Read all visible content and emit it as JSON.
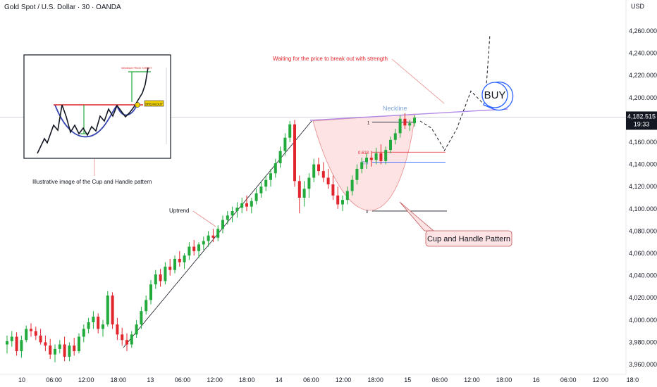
{
  "header": {
    "title": "Gold Spot / U.S. Dollar · 30 · OANDA"
  },
  "price_axis": {
    "currency": "USD",
    "current_price": "4,182.515",
    "countdown": "19:33",
    "ticks": [
      "4,260.000",
      "4,240.000",
      "4,220.000",
      "4,200.000",
      "4,180.000",
      "4,160.000",
      "4,140.000",
      "4,120.000",
      "4,100.000",
      "4,080.000",
      "4,060.000",
      "4,040.000",
      "4,020.000",
      "4,000.000",
      "3,980.000",
      "3,960.000"
    ]
  },
  "time_axis": {
    "ticks": [
      "10",
      "06:00",
      "12:00",
      "18:00",
      "13",
      "06:00",
      "12:00",
      "18:00",
      "14",
      "06:00",
      "12:00",
      "18:00",
      "15",
      "06:00",
      "12:00",
      "18:00",
      "16",
      "06:00",
      "12:00",
      "18:0"
    ]
  },
  "annotations": {
    "wait_text": "Waiting for the price to break out with strength",
    "neckline": "Neckline",
    "fib_1": "1",
    "fib_618": "0.618",
    "fib_05": "0.5",
    "fib_0": "0",
    "buy": "BUY",
    "uptrend": "Uptrend",
    "cup_handle": "Cup and Handle Pattern",
    "illustrative": "Illustrative image of the Cup and Handle pattern",
    "inset_target": "MINIMUM PRICE TARGET",
    "inset_breakout": "BREAKOUT"
  },
  "colors": {
    "up": "#22ab3c",
    "down": "#e0252c",
    "neckline": "#b28be6",
    "cup_fill": "#fde3e3",
    "buy_border": "#2962ff"
  },
  "chart_data": {
    "type": "candlestick",
    "ylim": [
      3955,
      4270
    ],
    "series": [
      {
        "name": "Gold Spot / U.S. Dollar",
        "ohlc": [
          [
            3978,
            3986,
            3970,
            3981
          ],
          [
            3981,
            3990,
            3976,
            3985
          ],
          [
            3985,
            3989,
            3968,
            3972
          ],
          [
            3972,
            3986,
            3966,
            3982
          ],
          [
            3982,
            3995,
            3980,
            3992
          ],
          [
            3992,
            3997,
            3985,
            3990
          ],
          [
            3990,
            3994,
            3982,
            3986
          ],
          [
            3986,
            3992,
            3978,
            3980
          ],
          [
            3980,
            3986,
            3972,
            3977
          ],
          [
            3977,
            3983,
            3965,
            3969
          ],
          [
            3969,
            3978,
            3962,
            3974
          ],
          [
            3974,
            3982,
            3970,
            3978
          ],
          [
            3978,
            3985,
            3963,
            3967
          ],
          [
            3967,
            3980,
            3963,
            3977
          ],
          [
            3977,
            3984,
            3968,
            3972
          ],
          [
            3972,
            3988,
            3970,
            3985
          ],
          [
            3985,
            3996,
            3980,
            3992
          ],
          [
            3992,
            4002,
            3988,
            3998
          ],
          [
            3998,
            4008,
            3992,
            4003
          ],
          [
            4003,
            4006,
            3988,
            3992
          ],
          [
            3992,
            4000,
            3985,
            3996
          ],
          [
            3996,
            4026,
            3994,
            4022
          ],
          [
            4022,
            4025,
            3992,
            3996
          ],
          [
            3996,
            4002,
            3982,
            3987
          ],
          [
            3987,
            3993,
            3977,
            3982
          ],
          [
            3982,
            3988,
            3972,
            3978
          ],
          [
            3978,
            3990,
            3975,
            3987
          ],
          [
            3987,
            4000,
            3984,
            3996
          ],
          [
            3996,
            4012,
            3992,
            4008
          ],
          [
            4008,
            4022,
            4005,
            4018
          ],
          [
            4018,
            4036,
            4014,
            4032
          ],
          [
            4032,
            4045,
            4028,
            4041
          ],
          [
            4041,
            4046,
            4030,
            4035
          ],
          [
            4035,
            4052,
            4032,
            4048
          ],
          [
            4048,
            4055,
            4040,
            4045
          ],
          [
            4045,
            4058,
            4042,
            4055
          ],
          [
            4055,
            4062,
            4048,
            4052
          ],
          [
            4052,
            4060,
            4046,
            4058
          ],
          [
            4058,
            4070,
            4054,
            4066
          ],
          [
            4066,
            4072,
            4058,
            4062
          ],
          [
            4062,
            4070,
            4056,
            4068
          ],
          [
            4068,
            4075,
            4063,
            4071
          ],
          [
            4071,
            4080,
            4066,
            4076
          ],
          [
            4076,
            4082,
            4070,
            4074
          ],
          [
            4074,
            4085,
            4071,
            4082
          ],
          [
            4082,
            4094,
            4078,
            4090
          ],
          [
            4090,
            4098,
            4086,
            4094
          ],
          [
            4094,
            4102,
            4088,
            4098
          ],
          [
            4098,
            4106,
            4092,
            4101
          ],
          [
            4101,
            4110,
            4096,
            4105
          ],
          [
            4105,
            4112,
            4098,
            4102
          ],
          [
            4102,
            4110,
            4096,
            4107
          ],
          [
            4107,
            4118,
            4104,
            4114
          ],
          [
            4114,
            4124,
            4110,
            4120
          ],
          [
            4120,
            4130,
            4116,
            4126
          ],
          [
            4126,
            4136,
            4120,
            4132
          ],
          [
            4132,
            4145,
            4128,
            4141
          ],
          [
            4141,
            4156,
            4137,
            4152
          ],
          [
            4152,
            4168,
            4148,
            4164
          ],
          [
            4164,
            4179,
            4160,
            4176
          ],
          [
            4176,
            4180,
            4120,
            4125
          ],
          [
            4125,
            4130,
            4096,
            4110
          ],
          [
            4110,
            4125,
            4102,
            4118
          ],
          [
            4118,
            4132,
            4110,
            4128
          ],
          [
            4128,
            4145,
            4124,
            4140
          ],
          [
            4140,
            4146,
            4130,
            4134
          ],
          [
            4134,
            4142,
            4124,
            4128
          ],
          [
            4128,
            4136,
            4118,
            4122
          ],
          [
            4122,
            4130,
            4108,
            4112
          ],
          [
            4112,
            4120,
            4100,
            4104
          ],
          [
            4104,
            4112,
            4098,
            4108
          ],
          [
            4108,
            4120,
            4104,
            4116
          ],
          [
            4116,
            4130,
            4112,
            4126
          ],
          [
            4126,
            4140,
            4122,
            4136
          ],
          [
            4136,
            4146,
            4132,
            4142
          ],
          [
            4142,
            4150,
            4136,
            4146
          ],
          [
            4146,
            4152,
            4138,
            4144
          ],
          [
            4144,
            4155,
            4140,
            4150
          ],
          [
            4150,
            4158,
            4140,
            4143
          ],
          [
            4143,
            4156,
            4140,
            4153
          ],
          [
            4153,
            4165,
            4150,
            4162
          ],
          [
            4162,
            4172,
            4158,
            4168
          ],
          [
            4168,
            4184,
            4164,
            4181
          ],
          [
            4181,
            4186,
            4172,
            4175
          ],
          [
            4175,
            4180,
            4170,
            4177
          ],
          [
            4177,
            4184,
            4174,
            4182
          ]
        ]
      }
    ],
    "levels": [
      {
        "label": "1",
        "value": 4178
      },
      {
        "label": "0.618",
        "value": 4151
      },
      {
        "label": "0.5",
        "value": 4142
      },
      {
        "label": "0",
        "value": 4098
      }
    ],
    "projection": [
      4152,
      4172,
      4206,
      4193,
      4257
    ]
  }
}
